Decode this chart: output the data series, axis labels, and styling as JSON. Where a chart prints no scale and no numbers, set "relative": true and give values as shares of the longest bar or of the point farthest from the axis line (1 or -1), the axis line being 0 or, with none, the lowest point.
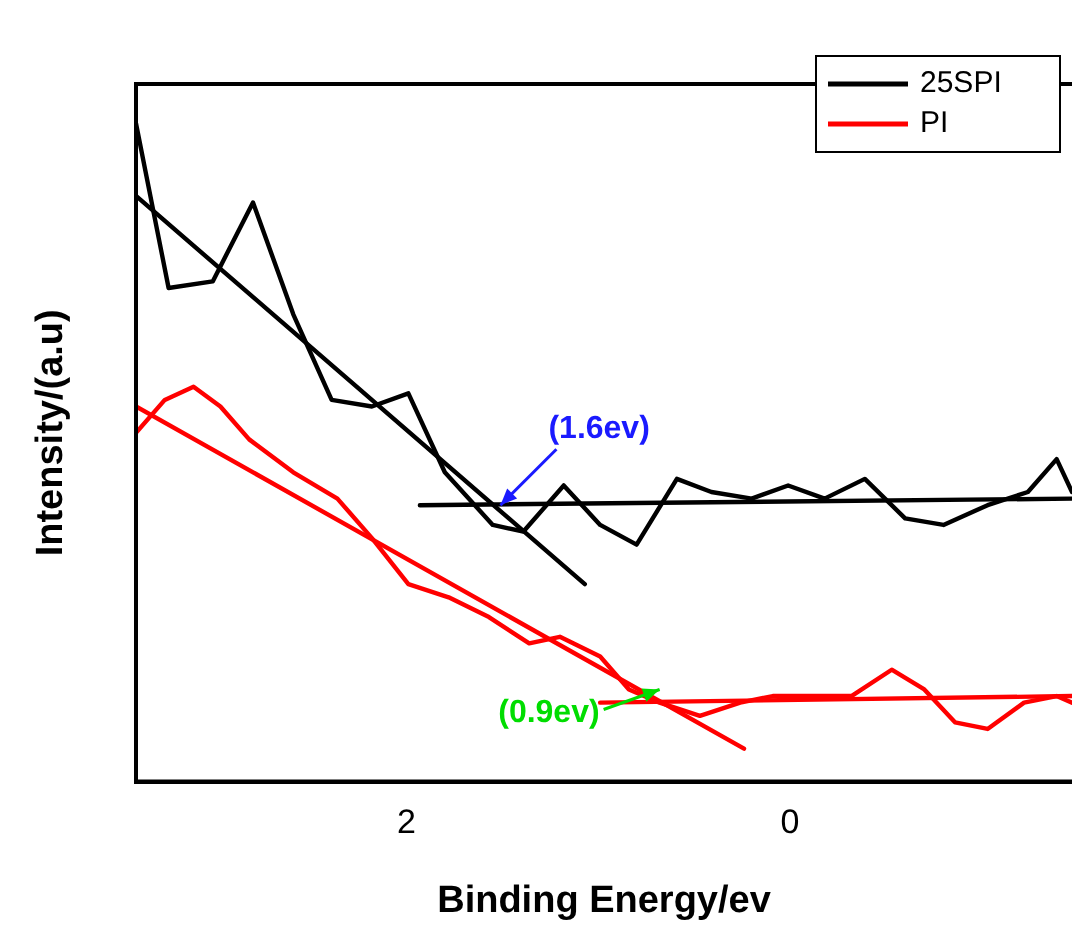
{
  "chart_data": {
    "type": "line",
    "xlabel": "Binding Energy/ev",
    "ylabel": "Intensity/(a.u)",
    "relative": true,
    "xlim": [
      3.41,
      -1.47
    ],
    "xticks": [
      2,
      0
    ],
    "grid": false,
    "legend": "top right",
    "marker": "none",
    "line_style": "solid",
    "series": [
      {
        "name": "25SPI",
        "color": "#000000",
        "x": [
          3.41,
          3.24,
          3.01,
          2.8,
          2.59,
          2.39,
          2.18,
          1.99,
          1.8,
          1.55,
          1.39,
          1.18,
          0.99,
          0.8,
          0.59,
          0.41,
          0.2,
          0.01,
          -0.18,
          -0.39,
          -0.6,
          -0.8,
          -1.03,
          -1.24,
          -1.39,
          -1.47
        ],
        "values": [
          1.0,
          0.75,
          0.76,
          0.88,
          0.71,
          0.58,
          0.57,
          0.59,
          0.47,
          0.39,
          0.38,
          0.45,
          0.39,
          0.36,
          0.46,
          0.44,
          0.43,
          0.45,
          0.43,
          0.46,
          0.4,
          0.39,
          0.42,
          0.44,
          0.49,
          0.44
        ]
      },
      {
        "name": "PI",
        "color": "#ff0000",
        "x": [
          3.41,
          3.26,
          3.11,
          2.97,
          2.82,
          2.59,
          2.36,
          2.18,
          1.99,
          1.78,
          1.57,
          1.36,
          1.2,
          0.99,
          0.84,
          0.68,
          0.47,
          0.26,
          0.09,
          -0.11,
          -0.32,
          -0.53,
          -0.7,
          -0.86,
          -1.03,
          -1.22,
          -1.39,
          -1.47
        ],
        "values": [
          0.53,
          0.58,
          0.6,
          0.57,
          0.52,
          0.47,
          0.43,
          0.37,
          0.3,
          0.28,
          0.25,
          0.21,
          0.22,
          0.19,
          0.14,
          0.12,
          0.1,
          0.12,
          0.13,
          0.13,
          0.13,
          0.17,
          0.14,
          0.09,
          0.08,
          0.12,
          0.13,
          0.12
        ]
      },
      {
        "color": "#000000",
        "x": [
          3.41,
          1.07
        ],
        "values": [
          0.89,
          0.3
        ]
      },
      {
        "color": "#000000",
        "x": [
          1.93,
          -1.47
        ],
        "values": [
          0.42,
          0.43
        ]
      },
      {
        "color": "#ff0000",
        "x": [
          3.41,
          0.24
        ],
        "values": [
          0.57,
          0.05
        ]
      },
      {
        "color": "#ff0000",
        "x": [
          0.99,
          -1.47
        ],
        "values": [
          0.12,
          0.13
        ]
      }
    ],
    "annotations": [
      {
        "text": "(1.6ev)",
        "x": 1.51,
        "y": 0.42
      },
      {
        "text": "(0.9ev)",
        "x": 0.68,
        "y": 0.14
      }
    ]
  }
}
